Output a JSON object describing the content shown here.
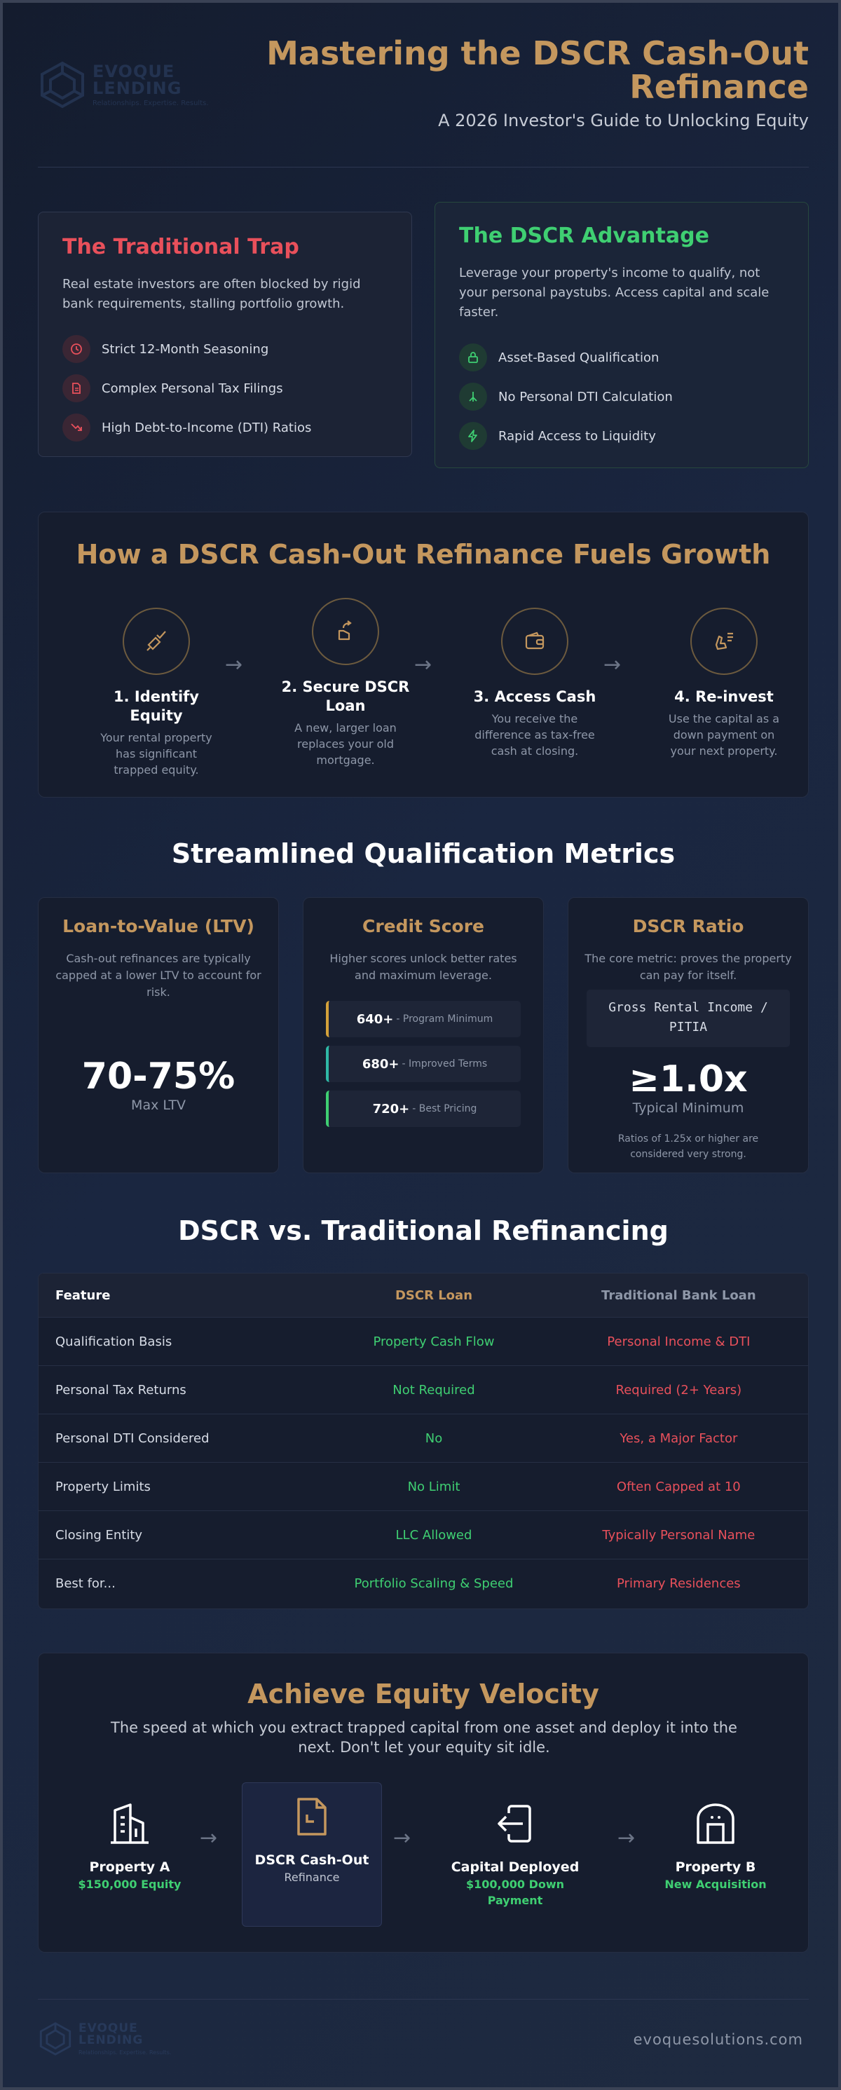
{
  "header": {
    "logo_word_1": "EVOQUE",
    "logo_word_2": "LENDING",
    "logo_tagline": "Relationships. Expertise. Results.",
    "title": "Mastering the DSCR Cash-Out Refinance",
    "subtitle": "A 2026 Investor's Guide to Unlocking Equity"
  },
  "trap": {
    "title": "The Traditional Trap",
    "lead": "Real estate investors are often blocked by rigid bank requirements, stalling portfolio growth.",
    "items": [
      {
        "label": "Strict 12-Month Seasoning",
        "icon": "clock-icon"
      },
      {
        "label": "Complex Personal Tax Filings",
        "icon": "document-icon"
      },
      {
        "label": "High Debt-to-Income (DTI) Ratios",
        "icon": "trend-down-icon"
      }
    ]
  },
  "advantage": {
    "title": "The DSCR Advantage",
    "lead": "Leverage your property's income to qualify, not your personal paystubs. Access capital and scale faster.",
    "items": [
      {
        "label": "Asset-Based Qualification",
        "icon": "lock-icon"
      },
      {
        "label": "No Personal DTI Calculation",
        "icon": "split-icon"
      },
      {
        "label": "Rapid Access to Liquidity",
        "icon": "lightning-icon"
      }
    ]
  },
  "growth": {
    "title": "How a DSCR Cash-Out Refinance Fuels Growth",
    "arrow": "→",
    "steps": [
      {
        "title": "1. Identify Equity",
        "desc": "Your rental property has significant trapped equity.",
        "icon": "tag-check-icon"
      },
      {
        "title": "2. Secure DSCR Loan",
        "desc": "A new, larger loan replaces your old mortgage.",
        "icon": "hand-arrow-icon"
      },
      {
        "title": "3. Access Cash",
        "desc": "You receive the difference as tax-free cash at closing.",
        "icon": "wallet-icon"
      },
      {
        "title": "4. Re-invest",
        "desc": "Use the capital as a down payment on your next property.",
        "icon": "hand-list-icon"
      }
    ]
  },
  "metrics": {
    "title": "Streamlined Qualification Metrics",
    "ltv": {
      "title": "Loan-to-Value (LTV)",
      "desc": "Cash-out refinances are typically capped at a lower LTV to account for risk.",
      "value": "70-75%",
      "sub": "Max LTV"
    },
    "credit": {
      "title": "Credit Score",
      "desc": "Higher scores unlock better rates and maximum leverage.",
      "tiers": [
        {
          "score": "640+",
          "label": "- Program Minimum",
          "color": "#d4a13a"
        },
        {
          "score": "680+",
          "label": "- Improved Terms",
          "color": "#2fb8a6"
        },
        {
          "score": "720+",
          "label": "- Best Pricing",
          "color": "#3fcf72"
        }
      ]
    },
    "dscr": {
      "title": "DSCR Ratio",
      "desc": "The core metric: proves the property can pay for itself.",
      "formula_1": "Gross Rental Income /",
      "formula_2": "PITIA",
      "value": "≥1.0x",
      "sub": "Typical Minimum",
      "note": "Ratios of 1.25x or higher are considered very strong."
    }
  },
  "comparison": {
    "title": "DSCR vs. Traditional Refinancing",
    "headers": [
      "Feature",
      "DSCR Loan",
      "Traditional Bank Loan"
    ],
    "rows": [
      [
        "Qualification Basis",
        "Property Cash Flow",
        "Personal Income & DTI"
      ],
      [
        "Personal Tax Returns",
        "Not Required",
        "Required (2+ Years)"
      ],
      [
        "Personal DTI Considered",
        "No",
        "Yes, a Major Factor"
      ],
      [
        "Property Limits",
        "No Limit",
        "Often Capped at 10"
      ],
      [
        "Closing Entity",
        "LLC Allowed",
        "Typically Personal Name"
      ],
      [
        "Best for...",
        "Portfolio Scaling & Speed",
        "Primary Residences"
      ]
    ]
  },
  "velocity": {
    "title": "Achieve Equity Velocity",
    "lead": "The speed at which you extract trapped capital from one asset and deploy it into the next. Don't let your equity sit idle.",
    "arrow": "→",
    "steps": [
      {
        "title": "Property A",
        "value": "$150,000 Equity",
        "icon": "building-icon"
      },
      {
        "title": "DSCR Cash-Out",
        "sub": "Refinance",
        "icon": "document-refresh-icon"
      },
      {
        "title": "Capital Deployed",
        "value": "$100,000 Down Payment",
        "icon": "login-arrow-icon"
      },
      {
        "title": "Property B",
        "value": "New Acquisition",
        "icon": "barn-icon"
      }
    ]
  },
  "footer": {
    "url": "evoquesolutions.com"
  },
  "colors": {
    "gold": "#c4975e",
    "green": "#3fcf72",
    "red": "#e8505b",
    "background": "#1a2640"
  }
}
